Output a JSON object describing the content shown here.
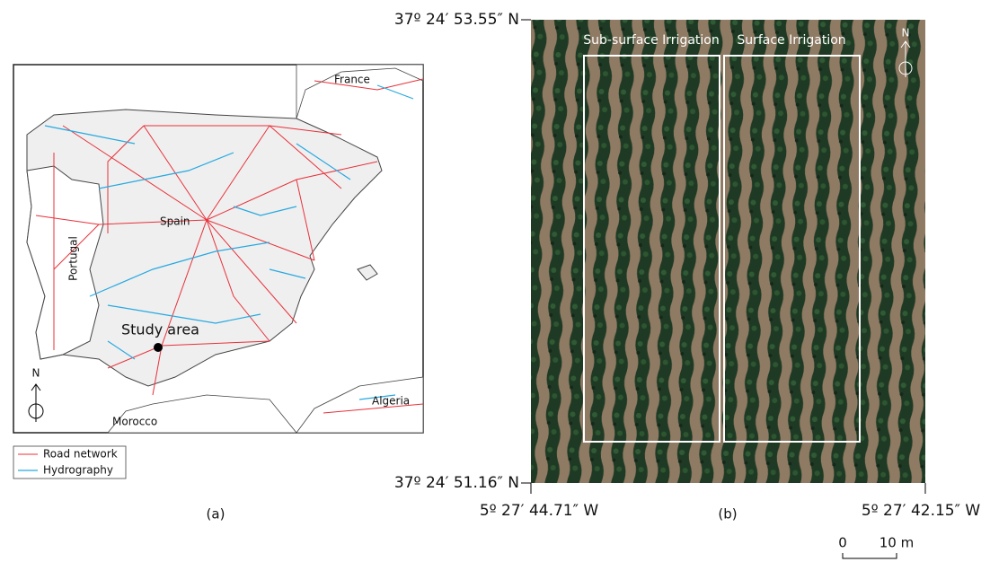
{
  "map_a": {
    "places": {
      "france": "France",
      "spain": "Spain",
      "portugal": "Portugal",
      "study_area": "Study area",
      "algeria": "Algeria",
      "morocco": "Morocco"
    },
    "north": "N",
    "legend": {
      "roads": "Road network",
      "hydrography": "Hydrography"
    },
    "caption": "(a)"
  },
  "image_b": {
    "lat_top": "37º 24′ 53.55″ N",
    "lat_bottom": "37º 24′ 51.16″ N",
    "lon_left": "5º 27′ 44.71″ W",
    "lon_right": "5º 27′ 42.15″ W",
    "plots": {
      "sub_surface": "Sub-surface Irrigation",
      "surface": "Surface Irrigation"
    },
    "north": "N",
    "scale": {
      "start": "0",
      "end": "10 m"
    },
    "caption": "(b)"
  }
}
